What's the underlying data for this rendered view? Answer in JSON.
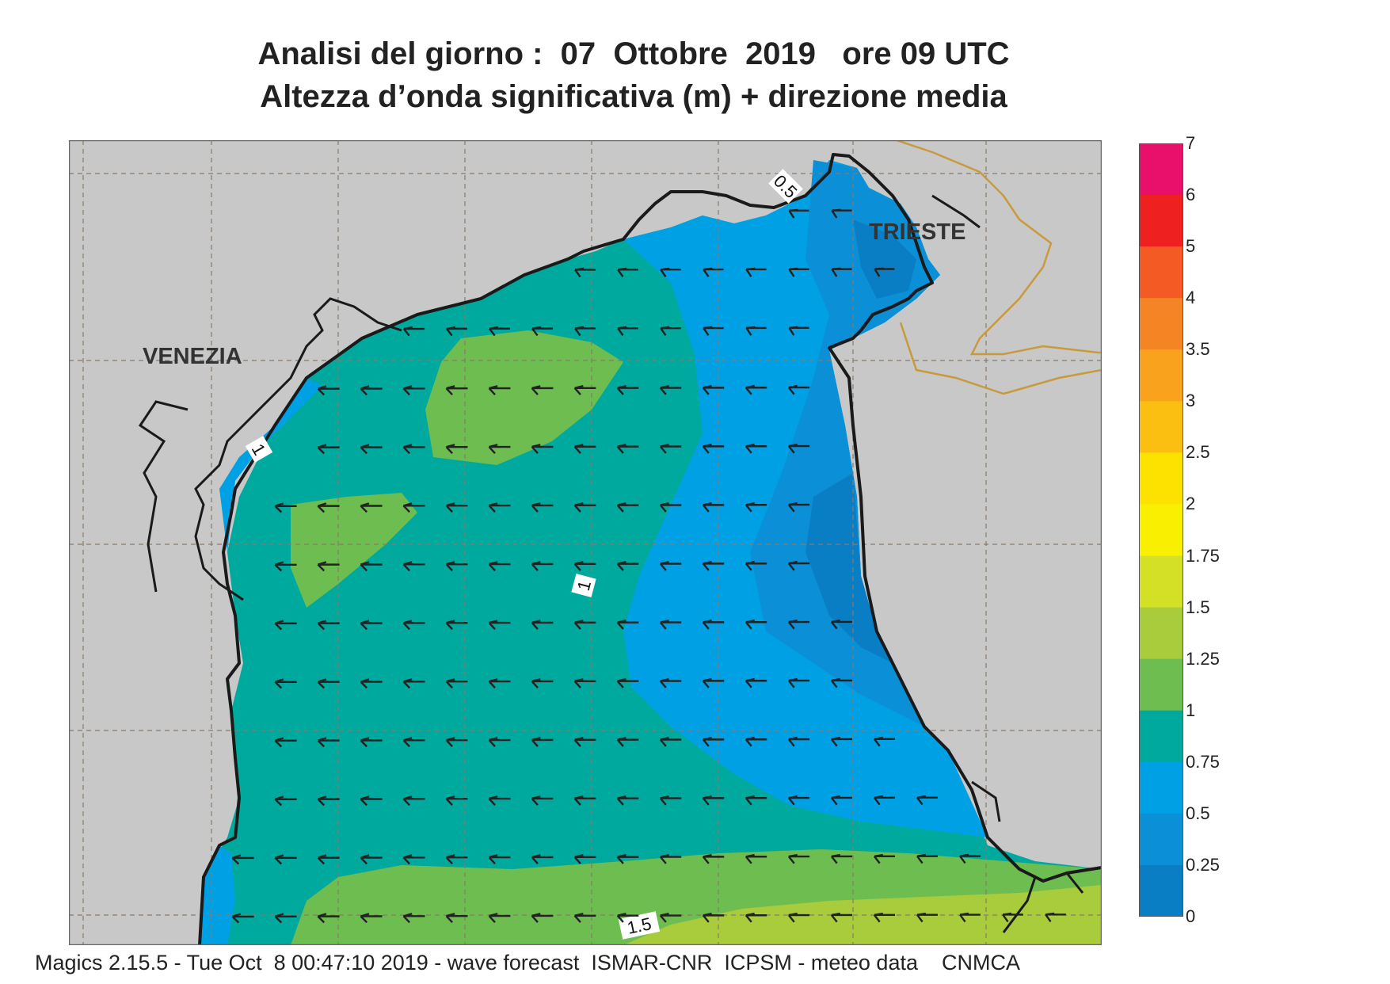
{
  "header": {
    "title_line1": "Analisi del giorno :  07  Ottobre  2019   ore 09 UTC",
    "title_line2": "Altezza d’onda significativa (m) + direzione media"
  },
  "map": {
    "cities": [
      {
        "name": "VENEZIA"
      },
      {
        "name": "TRIESTE"
      }
    ],
    "contour_labels": [
      "0.5",
      "1",
      "1",
      "1.5"
    ],
    "colors": {
      "land": "#c8c8c8",
      "border": "#c89a3c",
      "coast": "#1a1a1a",
      "grid": "#8a7a6a",
      "arrow": "#222222"
    }
  },
  "legend": {
    "levels": [
      {
        "label": "7",
        "color": "#e8106b"
      },
      {
        "label": "6",
        "color": "#ee2020"
      },
      {
        "label": "5",
        "color": "#f35a24"
      },
      {
        "label": "4",
        "color": "#f58424"
      },
      {
        "label": "3.5",
        "color": "#f9a21e"
      },
      {
        "label": "3",
        "color": "#fbbf12"
      },
      {
        "label": "2.5",
        "color": "#fde200"
      },
      {
        "label": "2",
        "color": "#f8f000"
      },
      {
        "label": "1.75",
        "color": "#d4e025"
      },
      {
        "label": "1.5",
        "color": "#a8cc3c"
      },
      {
        "label": "1.25",
        "color": "#6ebd50"
      },
      {
        "label": "1",
        "color": "#00a99d"
      },
      {
        "label": "0.75",
        "color": "#00a0e4"
      },
      {
        "label": "0.5",
        "color": "#0b90d8"
      },
      {
        "label": "0.25",
        "color": "#0a7ec4"
      },
      {
        "label": "0",
        "color": "#0560b0"
      }
    ]
  },
  "footer": {
    "text": "Magics 2.15.5 - Tue Oct  8 00:47:10 2019 - wave forecast  ISMAR-CNR  ICPSM - meteo data    CNMCA"
  }
}
